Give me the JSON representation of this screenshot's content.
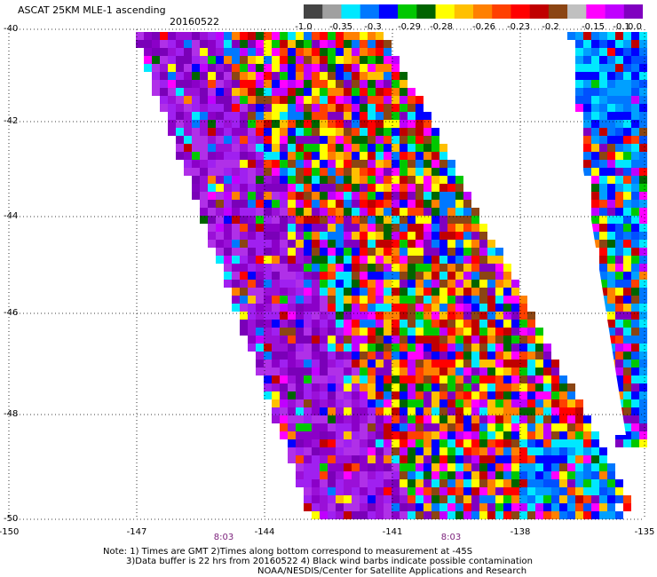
{
  "header": {
    "title": "ASCAT 25KM MLE-1 ascending",
    "date": "20160522"
  },
  "legend": {
    "colors": [
      "#444444",
      "#a0a0a0",
      "#00e8ff",
      "#0078ff",
      "#0000ff",
      "#00c800",
      "#006400",
      "#ffff00",
      "#ffc000",
      "#ff8000",
      "#ff4000",
      "#ff0000",
      "#c00000",
      "#8b4513",
      "#c0c0c0",
      "#ff00ff",
      "#c000ff",
      "#8000c0"
    ],
    "labels": [
      "-1.0",
      "-0.35",
      "-0.3",
      "-0.29",
      "-0.28",
      "-0.26",
      "-0.23",
      "-0.2",
      "-0.15",
      "-0.1",
      "0.0"
    ]
  },
  "axes": {
    "lat_labels": [
      "-40",
      "-42",
      "-44",
      "-46",
      "-48",
      "-50"
    ],
    "lon_labels": [
      "-150",
      "-147",
      "-144",
      "-141",
      "-138",
      "-135"
    ]
  },
  "times": [
    "8:03",
    "8:03"
  ],
  "notes": {
    "line1": "Note: 1) Times are GMT 2)Times along bottom correspond to measurement at -45S",
    "line2": "3)Data buffer is 22 hrs from 20160522 4) Black wind barbs indicate possible contamination",
    "line3": "NOAA/NESDIS/Center for Satellite Applications and Research"
  }
}
